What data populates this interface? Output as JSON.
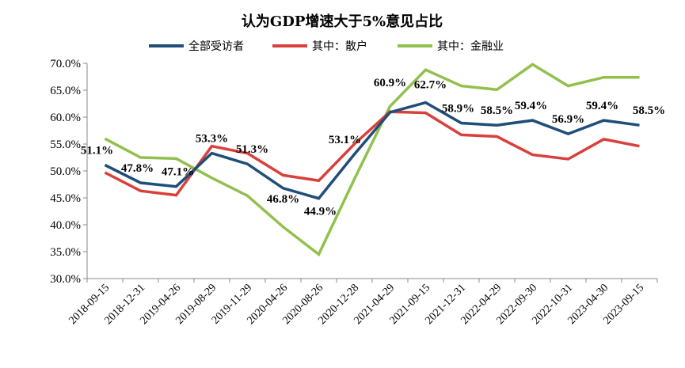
{
  "chart_data": {
    "type": "line",
    "title": "认为GDP增速大于5%意见占比",
    "categories": [
      "2018-09-15",
      "2018-12-31",
      "2019-04-26",
      "2019-08-29",
      "2019-11-29",
      "2020-04-26",
      "2020-08-26",
      "2020-12-28",
      "2021-04-29",
      "2021-09-15",
      "2021-12-31",
      "2022-04-29",
      "2022-09-30",
      "2022-10-31",
      "2023-04-30",
      "2023-09-15"
    ],
    "ylim": [
      30,
      70
    ],
    "yticks": [
      "30.0%",
      "35.0%",
      "40.0%",
      "45.0%",
      "50.0%",
      "55.0%",
      "60.0%",
      "65.0%",
      "70.0%"
    ],
    "legend_position": "top",
    "grid": false,
    "series": [
      {
        "name": "全部受访者",
        "color": "#1F4E79",
        "values": [
          51.1,
          47.8,
          47.1,
          53.3,
          51.3,
          46.8,
          44.9,
          53.1,
          60.9,
          62.7,
          58.9,
          58.5,
          59.4,
          56.9,
          59.4,
          58.5
        ]
      },
      {
        "name": "其中：散户",
        "color": "#D9403B",
        "values": [
          49.7,
          46.3,
          45.5,
          54.6,
          53.3,
          49.2,
          48.2,
          55.0,
          61.0,
          60.8,
          56.7,
          56.4,
          53.0,
          52.2,
          55.9,
          54.6
        ]
      },
      {
        "name": "其中：金融业",
        "color": "#92C04D",
        "values": [
          56.0,
          52.5,
          52.3,
          48.7,
          45.4,
          39.6,
          34.5,
          48.5,
          62.0,
          68.8,
          65.8,
          65.1,
          69.8,
          65.8,
          67.4,
          67.4
        ]
      }
    ],
    "data_labels": [
      "51.1%",
      "47.8%",
      "47.1%",
      "53.3%",
      "51.3%",
      "46.8%",
      "44.9%",
      "53.1%",
      "60.9%",
      "62.7%",
      "58.9%",
      "58.5%",
      "59.4%",
      "56.9%",
      "59.4%",
      "58.5%"
    ]
  }
}
